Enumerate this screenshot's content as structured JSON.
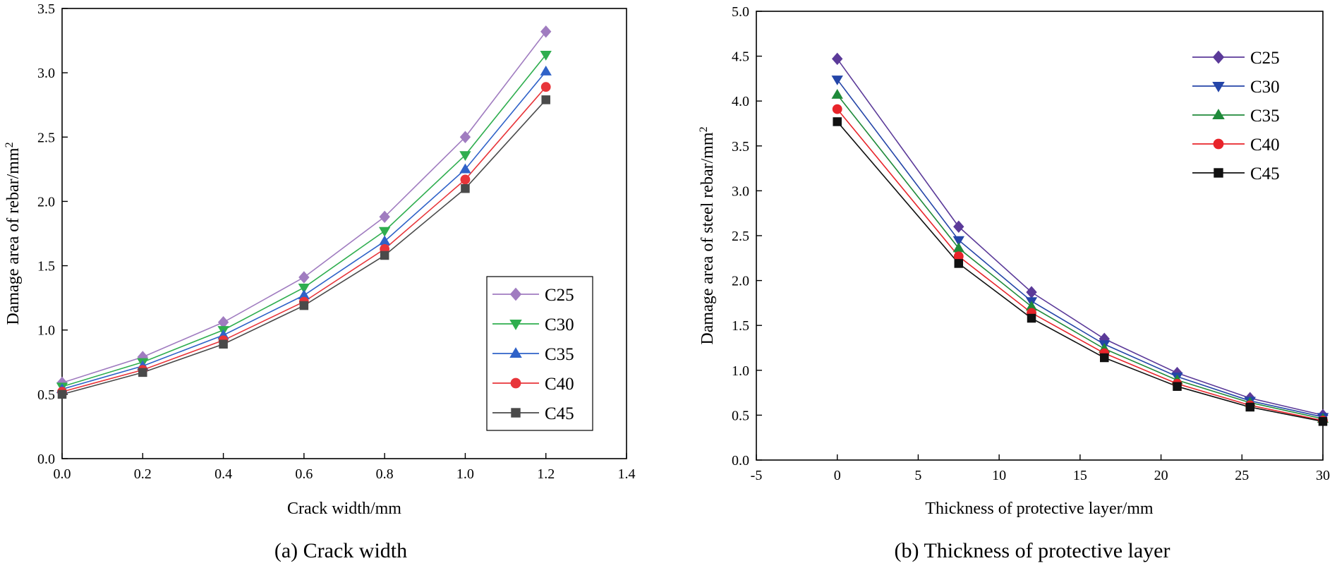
{
  "chart_data": [
    {
      "type": "line",
      "caption": "(a) Crack width",
      "xlabel": "Crack width/mm",
      "ylabel_main": "Damage area of rebar/mm",
      "ylabel_sup": "2",
      "xlim": [
        0.0,
        1.4
      ],
      "ylim": [
        0.0,
        3.5
      ],
      "xticks": [
        "0.0",
        "0.2",
        "0.4",
        "0.6",
        "0.8",
        "1.0",
        "1.2",
        "1.4"
      ],
      "yticks": [
        "0.0",
        "0.5",
        "1.0",
        "1.5",
        "2.0",
        "2.5",
        "3.0",
        "3.5"
      ],
      "grid": false,
      "legend_position": "lower-right",
      "x": [
        0.0,
        0.2,
        0.4,
        0.6,
        0.8,
        1.0,
        1.2
      ],
      "series": [
        {
          "name": "C25",
          "marker": "diamond",
          "color": "#a07cc0",
          "values": [
            0.59,
            0.79,
            1.06,
            1.41,
            1.88,
            2.5,
            3.32
          ]
        },
        {
          "name": "C30",
          "marker": "triangle-down",
          "color": "#2fae4f",
          "values": [
            0.56,
            0.75,
            1.0,
            1.33,
            1.77,
            2.36,
            3.14
          ]
        },
        {
          "name": "C35",
          "marker": "triangle-up",
          "color": "#2f62c8",
          "values": [
            0.54,
            0.72,
            0.96,
            1.27,
            1.69,
            2.25,
            3.01
          ]
        },
        {
          "name": "C40",
          "marker": "circle",
          "color": "#e8353a",
          "values": [
            0.52,
            0.69,
            0.92,
            1.22,
            1.63,
            2.17,
            2.89
          ]
        },
        {
          "name": "C45",
          "marker": "square",
          "color": "#4a4a4a",
          "values": [
            0.5,
            0.67,
            0.89,
            1.19,
            1.58,
            2.1,
            2.79
          ]
        }
      ]
    },
    {
      "type": "line",
      "caption": "(b) Thickness of protective layer",
      "xlabel": "Thickness of protective layer/mm",
      "ylabel_main": "Damage area of steel rebar/mm",
      "ylabel_sup": "2",
      "xlim": [
        -5,
        30
      ],
      "ylim": [
        0.0,
        5.0
      ],
      "xticks": [
        "-5",
        "0",
        "5",
        "10",
        "15",
        "20",
        "25",
        "30"
      ],
      "yticks": [
        "0.0",
        "0.5",
        "1.0",
        "1.5",
        "2.0",
        "2.5",
        "3.0",
        "3.5",
        "4.0",
        "4.5",
        "5.0"
      ],
      "grid": false,
      "legend_position": "top-right",
      "x": [
        0,
        7.5,
        12,
        16.5,
        21,
        25.5,
        30
      ],
      "series": [
        {
          "name": "C25",
          "marker": "diamond",
          "color": "#5b3a99",
          "values": [
            4.47,
            2.6,
            1.87,
            1.35,
            0.97,
            0.69,
            0.5
          ]
        },
        {
          "name": "C30",
          "marker": "triangle-down",
          "color": "#2445a8",
          "values": [
            4.24,
            2.45,
            1.77,
            1.29,
            0.93,
            0.66,
            0.48
          ]
        },
        {
          "name": "C35",
          "marker": "triangle-up",
          "color": "#1f8a3a",
          "values": [
            4.07,
            2.36,
            1.71,
            1.24,
            0.89,
            0.64,
            0.46
          ]
        },
        {
          "name": "C40",
          "marker": "circle",
          "color": "#e8242a",
          "values": [
            3.91,
            2.27,
            1.64,
            1.19,
            0.85,
            0.61,
            0.44
          ]
        },
        {
          "name": "C45",
          "marker": "square",
          "color": "#111111",
          "values": [
            3.77,
            2.19,
            1.58,
            1.14,
            0.82,
            0.59,
            0.43
          ]
        }
      ]
    }
  ]
}
